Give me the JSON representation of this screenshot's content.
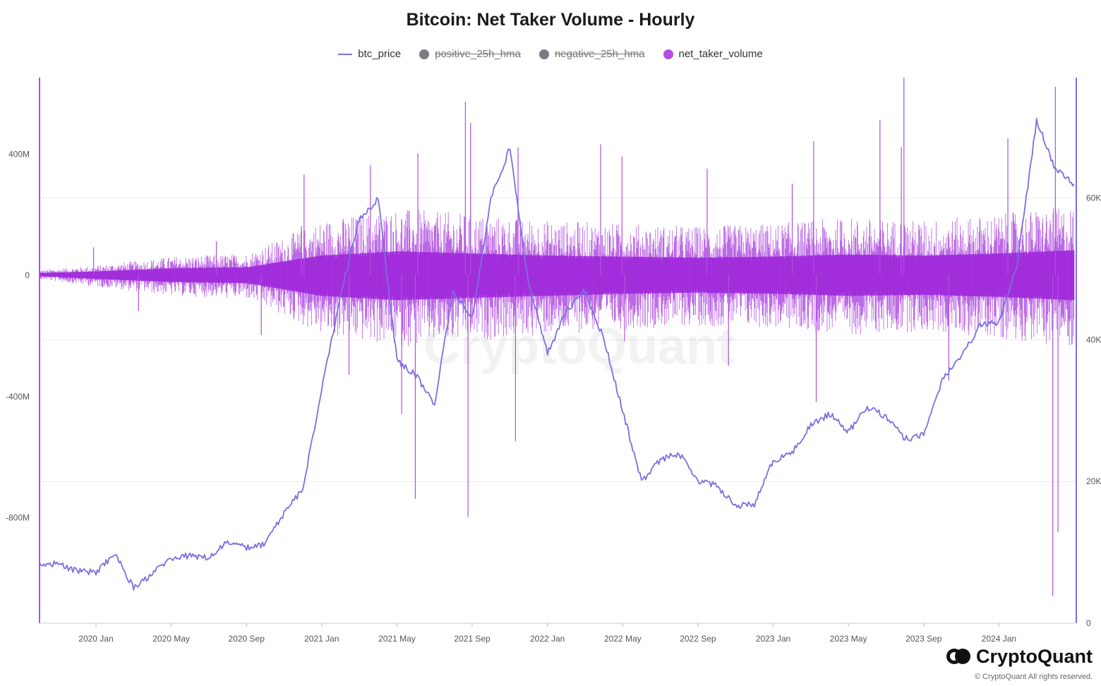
{
  "chart_data": {
    "type": "line",
    "title": "Bitcoin: Net Taker Volume - Hourly",
    "legend": [
      {
        "name": "btc_price",
        "color": "#7b6fe0",
        "marker": "line",
        "hidden": false
      },
      {
        "name": "positive_25h_hma",
        "color": "#7a7a85",
        "marker": "dot",
        "hidden": true
      },
      {
        "name": "negative_25h_hma",
        "color": "#7a7a85",
        "marker": "dot",
        "hidden": true
      },
      {
        "name": "net_taker_volume",
        "color": "#b04fe0",
        "marker": "dot",
        "hidden": false
      }
    ],
    "legend_position": "top-center",
    "x_ticks": [
      "2020 Jan",
      "2020 May",
      "2020 Sep",
      "2021 Jan",
      "2021 May",
      "2021 Sep",
      "2022 Jan",
      "2022 May",
      "2022 Sep",
      "2023 Jan",
      "2023 May",
      "2023 Sep",
      "2024 Jan"
    ],
    "x_range": [
      "2019-10",
      "2024-05"
    ],
    "y_left": {
      "ticks": [
        "400M",
        "0",
        "-400M",
        "-800M"
      ],
      "tick_values": [
        400,
        0,
        -400,
        -800
      ],
      "unit": "M",
      "range": [
        -1150,
        650
      ]
    },
    "y_right": {
      "ticks": [
        "60K",
        "40K",
        "20K",
        "0"
      ],
      "tick_values": [
        60000,
        40000,
        20000,
        0
      ],
      "range": [
        0,
        77000
      ]
    },
    "grid": true,
    "series": [
      {
        "name": "btc_price",
        "axis": "right",
        "points": [
          [
            "2019-10",
            8300
          ],
          [
            "2019-11",
            8400
          ],
          [
            "2019-12",
            7300
          ],
          [
            "2020-01",
            7200
          ],
          [
            "2020-02",
            9800
          ],
          [
            "2020-03",
            5000
          ],
          [
            "2020-04",
            7000
          ],
          [
            "2020-05",
            9200
          ],
          [
            "2020-06",
            9500
          ],
          [
            "2020-07",
            9200
          ],
          [
            "2020-08",
            11500
          ],
          [
            "2020-09",
            10600
          ],
          [
            "2020-10",
            11200
          ],
          [
            "2020-11",
            15500
          ],
          [
            "2020-12",
            19000
          ],
          [
            "2021-01",
            33000
          ],
          [
            "2021-02",
            46000
          ],
          [
            "2021-03",
            57000
          ],
          [
            "2021-04",
            60000
          ],
          [
            "2021-05",
            37000
          ],
          [
            "2021-06",
            35000
          ],
          [
            "2021-07",
            31000
          ],
          [
            "2021-08",
            47000
          ],
          [
            "2021-09",
            43000
          ],
          [
            "2021-10",
            60000
          ],
          [
            "2021-11",
            67000
          ],
          [
            "2021-12",
            48000
          ],
          [
            "2022-01",
            38000
          ],
          [
            "2022-02",
            44000
          ],
          [
            "2022-03",
            47000
          ],
          [
            "2022-04",
            40000
          ],
          [
            "2022-05",
            30000
          ],
          [
            "2022-06",
            20000
          ],
          [
            "2022-07",
            23000
          ],
          [
            "2022-08",
            24000
          ],
          [
            "2022-09",
            20000
          ],
          [
            "2022-10",
            19500
          ],
          [
            "2022-11",
            16500
          ],
          [
            "2022-12",
            16800
          ],
          [
            "2023-01",
            23000
          ],
          [
            "2023-02",
            24000
          ],
          [
            "2023-03",
            28000
          ],
          [
            "2023-04",
            29500
          ],
          [
            "2023-05",
            27000
          ],
          [
            "2023-06",
            30500
          ],
          [
            "2023-07",
            29200
          ],
          [
            "2023-08",
            26000
          ],
          [
            "2023-09",
            26500
          ],
          [
            "2023-10",
            34500
          ],
          [
            "2023-11",
            37500
          ],
          [
            "2023-12",
            42000
          ],
          [
            "2024-01",
            42500
          ],
          [
            "2024-02",
            51000
          ],
          [
            "2024-03",
            71000
          ],
          [
            "2024-04",
            64000
          ],
          [
            "2024-05",
            62000
          ]
        ]
      },
      {
        "name": "net_taker_volume",
        "axis": "left",
        "unit": "M",
        "envelope": [
          [
            "2019-10",
            15,
            -15
          ],
          [
            "2020-01",
            30,
            -40
          ],
          [
            "2020-05",
            60,
            -70
          ],
          [
            "2020-09",
            70,
            -80
          ],
          [
            "2021-01",
            180,
            -200
          ],
          [
            "2021-05",
            220,
            -240
          ],
          [
            "2021-09",
            200,
            -220
          ],
          [
            "2022-01",
            180,
            -200
          ],
          [
            "2022-05",
            170,
            -180
          ],
          [
            "2022-09",
            160,
            -170
          ],
          [
            "2023-01",
            170,
            -180
          ],
          [
            "2023-05",
            190,
            -200
          ],
          [
            "2023-09",
            180,
            -190
          ],
          [
            "2024-01",
            200,
            -210
          ],
          [
            "2024-05",
            230,
            -240
          ]
        ],
        "spikes": [
          [
            "2020-02",
            90
          ],
          [
            "2020-03",
            -120
          ],
          [
            "2020-08",
            110
          ],
          [
            "2020-09",
            -200
          ],
          [
            "2020-12",
            160
          ],
          [
            "2021-01",
            330
          ],
          [
            "2021-02",
            -330
          ],
          [
            "2021-04",
            360
          ],
          [
            "2021-05",
            -740
          ],
          [
            "2021-06",
            400
          ],
          [
            "2021-06",
            -460
          ],
          [
            "2021-08",
            570
          ],
          [
            "2021-09",
            -800
          ],
          [
            "2021-10",
            500
          ],
          [
            "2021-11",
            -550
          ],
          [
            "2021-12",
            420
          ],
          [
            "2022-03",
            430
          ],
          [
            "2022-05",
            390
          ],
          [
            "2022-06",
            -220
          ],
          [
            "2022-09",
            350
          ],
          [
            "2022-11",
            -300
          ],
          [
            "2023-01",
            300
          ],
          [
            "2023-03",
            440
          ],
          [
            "2023-04",
            -420
          ],
          [
            "2023-06",
            510
          ],
          [
            "2023-08",
            420
          ],
          [
            "2023-09",
            650
          ],
          [
            "2023-10",
            -350
          ],
          [
            "2024-02",
            450
          ],
          [
            "2024-03",
            -1060
          ],
          [
            "2024-04",
            620
          ],
          [
            "2024-05",
            -850
          ]
        ]
      }
    ]
  },
  "branding": {
    "logo_text": "CryptoQuant",
    "watermark": "CryptoQuant",
    "copyright": "© CryptoQuant All rights reserved."
  }
}
